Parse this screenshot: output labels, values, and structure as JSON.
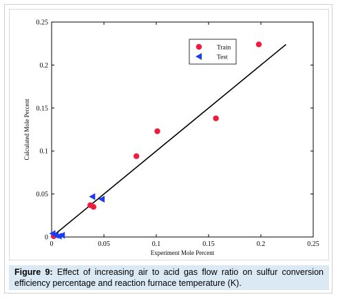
{
  "chart_data": {
    "type": "scatter",
    "xlabel": "Experiment Mole Percent",
    "ylabel": "Calculated Mole Percent",
    "xlim": [
      0,
      0.25
    ],
    "ylim": [
      0,
      0.25
    ],
    "xticks": [
      "0",
      "0.05",
      "0.1",
      "0.15",
      "0.2",
      "0.25"
    ],
    "yticks": [
      "0",
      "0.05",
      "0.1",
      "0.15",
      "0.2",
      "0.25"
    ],
    "xtick_values": [
      0,
      0.05,
      0.1,
      0.15,
      0.2,
      0.25
    ],
    "ytick_values": [
      0,
      0.05,
      0.1,
      0.15,
      0.2,
      0.25
    ],
    "grid": false,
    "legend_position": "top-right",
    "series": [
      {
        "name": "Train",
        "marker": "circle",
        "color": "#ee1c3e",
        "points": [
          {
            "x": 0.002,
            "y": 0.001
          },
          {
            "x": 0.037,
            "y": 0.037
          },
          {
            "x": 0.04,
            "y": 0.035
          },
          {
            "x": 0.081,
            "y": 0.094
          },
          {
            "x": 0.101,
            "y": 0.123
          },
          {
            "x": 0.157,
            "y": 0.138
          },
          {
            "x": 0.198,
            "y": 0.224
          }
        ]
      },
      {
        "name": "Test",
        "marker": "triangle-left",
        "color": "#1c3cf0",
        "points": [
          {
            "x": 0.001,
            "y": 0.004
          },
          {
            "x": 0.004,
            "y": 0.002
          },
          {
            "x": 0.007,
            "y": 0.001
          },
          {
            "x": 0.01,
            "y": 0.002
          },
          {
            "x": 0.039,
            "y": 0.047
          },
          {
            "x": 0.048,
            "y": 0.044
          }
        ]
      }
    ],
    "fit_line": {
      "x": [
        0,
        0.224
      ],
      "y": [
        0,
        0.224
      ],
      "color": "#000000"
    }
  },
  "caption": {
    "label": "Figure 9:",
    "text": " Effect of increasing air to acid gas flow ratio on sulfur conversion efficiency percentage and reaction furnace temperature (K)."
  }
}
